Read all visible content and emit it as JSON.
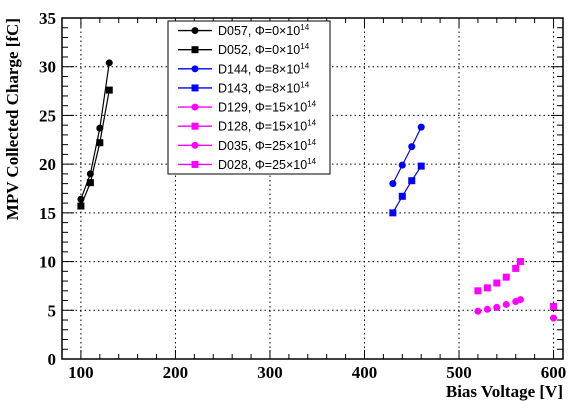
{
  "chart_data": {
    "type": "scatter",
    "xlabel": "Bias Voltage [V]",
    "ylabel": "MPV Collected Charge [fC]",
    "xlim": [
      80,
      610
    ],
    "ylim": [
      0,
      35
    ],
    "xticks": [
      100,
      200,
      300,
      400,
      500,
      600
    ],
    "yticks": [
      0,
      5,
      10,
      15,
      20,
      25,
      30,
      35
    ],
    "grid": true,
    "legend_position": "top-center",
    "series": [
      {
        "name": "D057, Φ=0×10^14",
        "label_main": "D057, Φ=0×10",
        "label_exp": "14",
        "color": "#000000",
        "marker": "circle",
        "line": true,
        "x": [
          100,
          110,
          120,
          130
        ],
        "y": [
          16.4,
          19.0,
          23.7,
          30.4
        ]
      },
      {
        "name": "D052, Φ=0×10^14",
        "label_main": "D052, Φ=0×10",
        "label_exp": "14",
        "color": "#000000",
        "marker": "square",
        "line": true,
        "x": [
          100,
          110,
          120,
          130
        ],
        "y": [
          15.7,
          18.1,
          22.2,
          27.6
        ]
      },
      {
        "name": "D144, Φ=8×10^14",
        "label_main": "D144, Φ=8×10",
        "label_exp": "14",
        "color": "#0000ff",
        "marker": "circle",
        "line": true,
        "x": [
          430,
          440,
          450,
          460
        ],
        "y": [
          18.0,
          19.9,
          21.8,
          23.8
        ]
      },
      {
        "name": "D143, Φ=8×10^14",
        "label_main": "D143, Φ=8×10",
        "label_exp": "14",
        "color": "#0000ff",
        "marker": "square",
        "line": true,
        "x": [
          430,
          440,
          450,
          460
        ],
        "y": [
          15.0,
          16.7,
          18.3,
          19.8
        ]
      },
      {
        "name": "D129, Φ=15×10^14",
        "label_main": "D129, Φ=15×10",
        "label_exp": "14",
        "color": "#ff00ff",
        "marker": "circle",
        "line": false,
        "x": [
          520,
          530,
          540,
          550,
          560,
          565
        ],
        "y": [
          4.9,
          5.1,
          5.3,
          5.6,
          5.9,
          6.1
        ]
      },
      {
        "name": "D128, Φ=15×10^14",
        "label_main": "D128, Φ=15×10",
        "label_exp": "14",
        "color": "#ff00ff",
        "marker": "square",
        "line": false,
        "x": [
          520,
          530,
          540,
          550,
          560,
          565
        ],
        "y": [
          7.0,
          7.3,
          7.8,
          8.4,
          9.3,
          10.0
        ]
      },
      {
        "name": "D035, Φ=25×10^14",
        "label_main": "D035, Φ=25×10",
        "label_exp": "14",
        "color": "#ff00ff",
        "marker": "circle",
        "line": false,
        "x": [
          600
        ],
        "y": [
          4.2
        ]
      },
      {
        "name": "D028, Φ=25×10^14",
        "label_main": "D028, Φ=25×10",
        "label_exp": "14",
        "color": "#ff00ff",
        "marker": "square",
        "line": false,
        "x": [
          600
        ],
        "y": [
          5.4
        ]
      }
    ]
  }
}
